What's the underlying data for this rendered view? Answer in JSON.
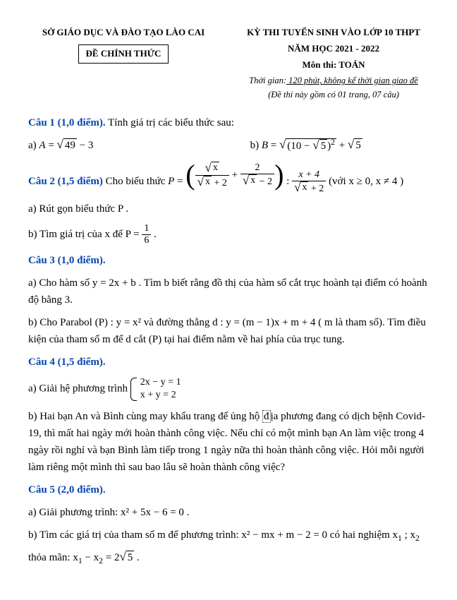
{
  "header": {
    "dept": "SỞ GIÁO DỤC VÀ ĐÀO TẠO LÀO CAI",
    "official": "ĐỀ CHÍNH THỨC",
    "exam_line1": "KỲ THI TUYỂN SINH VÀO LỚP 10 THPT",
    "exam_year": "NĂM HỌC 2021 - 2022",
    "subject": "Môn thi: TOÁN",
    "time_prefix": "Thời gian:",
    "time_value": " 120 phút, không kể thời gian giao đề",
    "pages": "(Đề thi này gồm có 01 trang, 07 câu)"
  },
  "q1": {
    "label": "Câu 1 (1,0 điểm).",
    "prompt": " Tính giá trị các biểu thức sau:",
    "a_prefix": "a)  ",
    "a_eq_A": "A",
    "a_eq_eq": " = ",
    "a_sqrt_49": "49",
    "a_tail": " − 3",
    "b_prefix": "b)  ",
    "b_eq_B": "B",
    "b_eq_eq": " = ",
    "b_inner": "(10 − ",
    "b_root5": "5",
    "b_inner_close": ")",
    "b_sq": "2",
    "b_plus": " + ",
    "b_root5b": "5"
  },
  "q2": {
    "label": "Câu 2 (1,5 điểm)",
    "prompt": " Cho biểu thức  ",
    "P": "P",
    "eq": " = ",
    "num1_rad": "x",
    "den1_rad": "x",
    "den1_tail": " + 2",
    "plus": " + ",
    "num2": "2",
    "den2_rad": "x",
    "den2_tail": " − 2",
    "colon": " : ",
    "num3": "x + 4",
    "den3_rad": "x",
    "den3_tail": " + 2",
    "cond": " (với  x ≥ 0, x ≠ 4 )",
    "a": "a) Rút gọn biểu thức  P .",
    "b_pre": "b) Tìm giá trị của  x  để  P = ",
    "b_num": "1",
    "b_den": "6",
    "b_period": " ."
  },
  "q3": {
    "label": "Câu 3 (1,0 điểm).",
    "a": "a) Cho hàm số  y = 2x + b . Tìm  b  biết rằng đồ thị của hàm số cắt trục hoành tại điểm có hoành độ bằng 3.",
    "b": "b) Cho Parabol  (P) : y = x²  và đường thẳng  d : y = (m − 1)x + m + 4  (  m  là tham số). Tìm điều kiện của tham số  m  để  d  cắt  (P)  tại hai điểm nằm về hai phía của trục tung."
  },
  "q4": {
    "label": "Câu 4 (1,5 điểm).",
    "a_pre": "a) Giải hệ phương trình  ",
    "eq1": "2x − y = 1",
    "eq2": "x + y = 2",
    "b_pre": "b) Hai bạn An và Bình cùng may khẩu trang để ủng hộ ",
    "b_box": "đ",
    "b_rest": "ịa phương đang có dịch bệnh Covid-19, thì mất hai ngày mới hoàn thành công việc. Nếu chỉ có một mình bạn An làm việc trong 4 ngày rồi nghỉ và bạn Bình làm tiếp trong 1 ngày nữa thì hoàn thành công việc. Hỏi mỗi người làm riêng một mình thì sau bao lâu sẽ hoàn thành công việc?"
  },
  "q5": {
    "label": "Câu 5 (2,0 điểm).",
    "a": "a) Giải phương trình:  x² + 5x − 6 = 0 .",
    "b_pre": "b) Tìm các giá trị của tham số  m  để phương trình:  x² − mx + m − 2 = 0  có hai nghiệm  x",
    "b_s1": "1",
    "b_mid": " ; x",
    "b_s2": "2",
    "b_line2_pre": "thỏa mãn:  x",
    "b_line2_s1": "1",
    "b_line2_mid": " − x",
    "b_line2_s2": "2",
    "b_line2_eq": " = 2",
    "b_line2_rad": "5",
    "b_line2_period": " ."
  }
}
